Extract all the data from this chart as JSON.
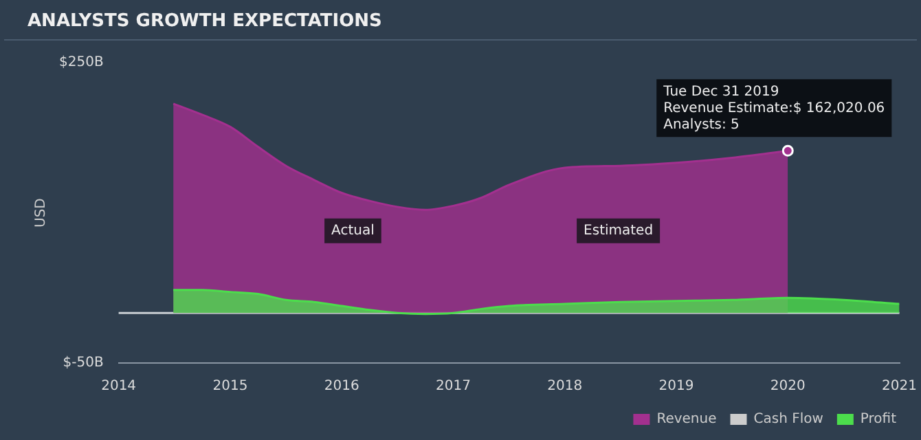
{
  "chart_data": {
    "type": "area",
    "title": "ANALYSTS GROWTH EXPECTATIONS",
    "ylabel": "USD",
    "xlim": [
      2014,
      2021
    ],
    "xticks": [
      2014,
      2015,
      2016,
      2017,
      2018,
      2019,
      2020,
      2021
    ],
    "ylim": [
      -50,
      250
    ],
    "yticks": [
      {
        "value": -50,
        "label": "$-50B"
      },
      {
        "value": 250,
        "label": "$250B"
      }
    ],
    "grid": false,
    "legend": "bottom right",
    "ref_lines": [
      {
        "axis": "y",
        "value": 0,
        "color": "#c8cdd2"
      }
    ],
    "annotations": [
      "Actual",
      "Estimated",
      {
        "text": "Tue Dec 31 2019\nRevenue Estimate:$ 162,020.06\nAnalysts: 5",
        "x": 2020,
        "y": 162
      }
    ],
    "series": [
      {
        "name": "Revenue",
        "color": "#a3308f",
        "x": [
          2014.49,
          2014.75,
          2015,
          2015.25,
          2015.5,
          2015.75,
          2016,
          2016.25,
          2016.5,
          2016.75,
          2017,
          2017.25,
          2017.5,
          2018,
          2018.5,
          2019,
          2019.5,
          2020
        ],
        "values": [
          209,
          198,
          186,
          166,
          147,
          133,
          120,
          112,
          106,
          103,
          107,
          115,
          128,
          145,
          147,
          150,
          155,
          162
        ]
      },
      {
        "name": "Cash Flow",
        "color": "#cccccc"
      },
      {
        "name": "Profit",
        "color": "#4cdd4c",
        "x": [
          2014.49,
          2014.75,
          2015,
          2015.25,
          2015.5,
          2015.75,
          2016,
          2016.25,
          2016.5,
          2016.75,
          2017,
          2017.25,
          2017.5,
          2018,
          2018.5,
          2019,
          2019.5,
          2020,
          2020.5,
          2021
        ],
        "values": [
          23,
          23,
          21,
          19,
          13,
          11,
          7,
          3,
          0,
          -1,
          0,
          4,
          7,
          9,
          11,
          12,
          13,
          15,
          13,
          9
        ]
      }
    ]
  }
}
